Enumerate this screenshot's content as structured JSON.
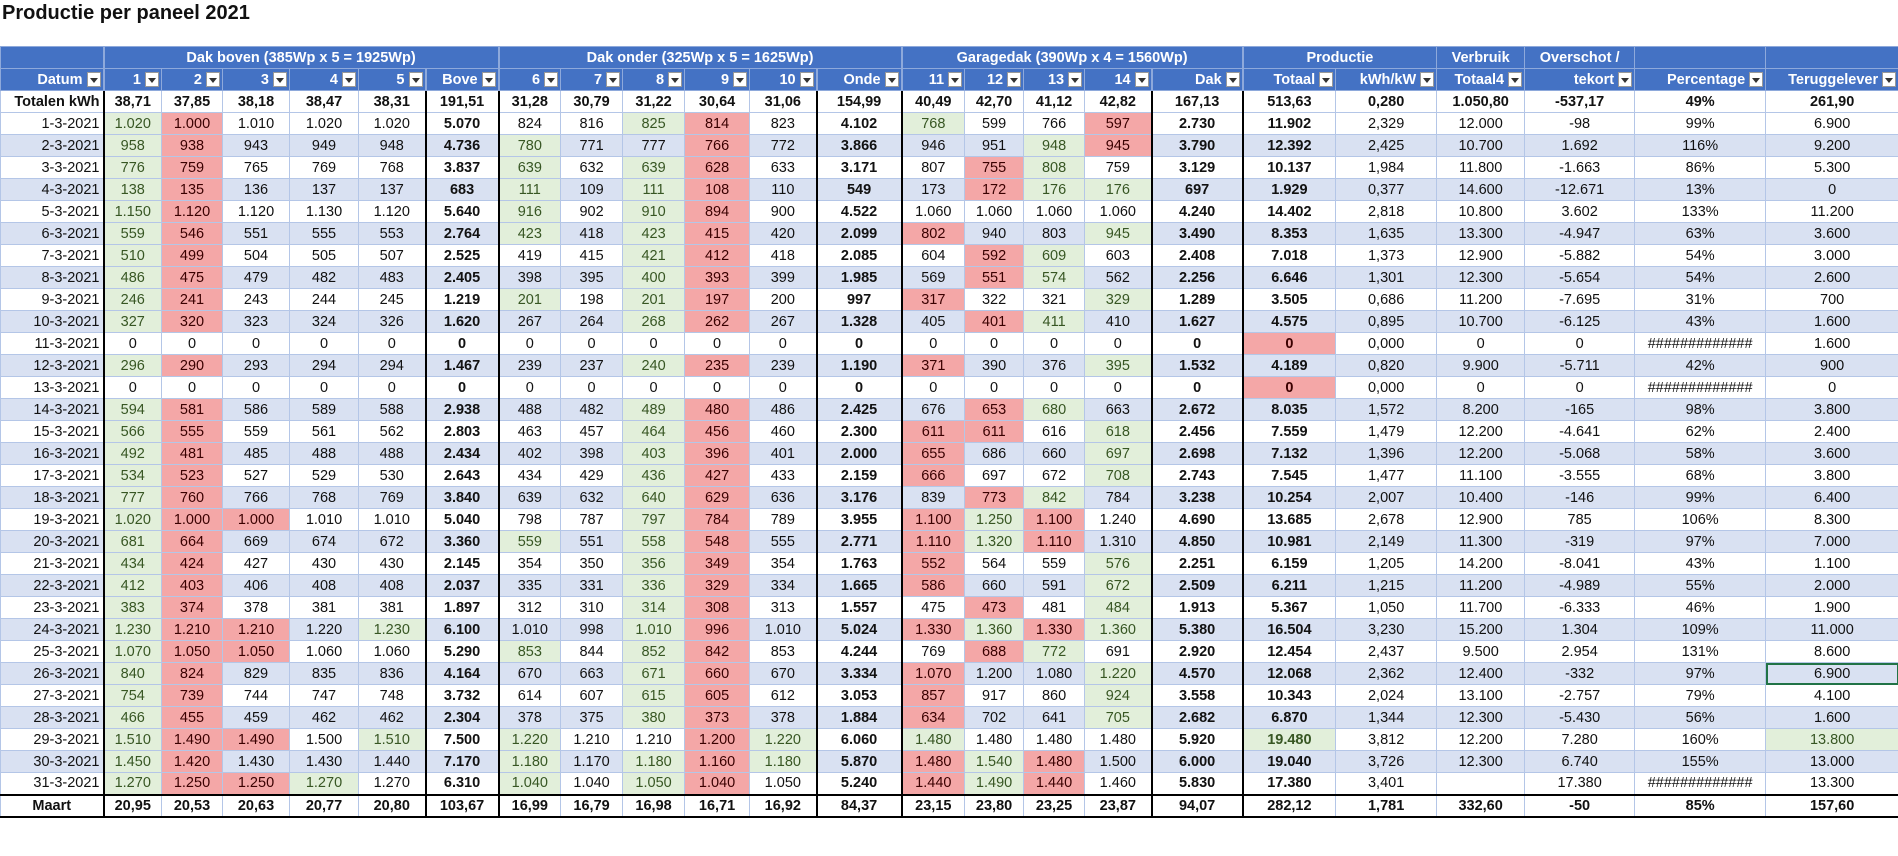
{
  "title": "Productie per paneel 2021",
  "table": {
    "group_headers": [
      "Dak boven (385Wp x 5 = 1925Wp)",
      "Dak onder (325Wp x 5 = 1625Wp)",
      "Garagedak (390Wp x 4 = 1560Wp)",
      "Productie",
      "Verbruik",
      "Overschot /"
    ],
    "headers": [
      "Datum",
      "1",
      "2",
      "3",
      "4",
      "5",
      "Bove",
      "6",
      "7",
      "8",
      "9",
      "10",
      "Onde",
      "11",
      "12",
      "13",
      "14",
      "Dak",
      "Totaal",
      "kWh/kW",
      "Totaal4",
      "tekort",
      "Percentage",
      "Teruggelever"
    ],
    "totals_row": [
      "Totalen kWh",
      "38,71",
      "37,85",
      "38,18",
      "38,47",
      "38,31",
      "191,51",
      "31,28",
      "30,79",
      "31,22",
      "30,64",
      "31,06",
      "154,99",
      "40,49",
      "42,70",
      "41,12",
      "42,82",
      "167,13",
      "513,63",
      "0,280",
      "1.050,80",
      "-537,17",
      "49%",
      "261,90"
    ],
    "rows": [
      [
        "1-3-2021",
        "1.020",
        "1.000",
        "1.010",
        "1.020",
        "1.020",
        "5.070",
        "824",
        "816",
        "825",
        "814",
        "823",
        "4.102",
        "768",
        "599",
        "766",
        "597",
        "2.730",
        "11.902",
        "2,329",
        "12.000",
        "-98",
        "99%",
        "6.900"
      ],
      [
        "2-3-2021",
        "958",
        "938",
        "943",
        "949",
        "948",
        "4.736",
        "780",
        "771",
        "777",
        "766",
        "772",
        "3.866",
        "946",
        "951",
        "948",
        "945",
        "3.790",
        "12.392",
        "2,425",
        "10.700",
        "1.692",
        "116%",
        "9.200"
      ],
      [
        "3-3-2021",
        "776",
        "759",
        "765",
        "769",
        "768",
        "3.837",
        "639",
        "632",
        "639",
        "628",
        "633",
        "3.171",
        "807",
        "755",
        "808",
        "759",
        "3.129",
        "10.137",
        "1,984",
        "11.800",
        "-1.663",
        "86%",
        "5.300"
      ],
      [
        "4-3-2021",
        "138",
        "135",
        "136",
        "137",
        "137",
        "683",
        "111",
        "109",
        "111",
        "108",
        "110",
        "549",
        "173",
        "172",
        "176",
        "176",
        "697",
        "1.929",
        "0,377",
        "14.600",
        "-12.671",
        "13%",
        "0"
      ],
      [
        "5-3-2021",
        "1.150",
        "1.120",
        "1.120",
        "1.130",
        "1.120",
        "5.640",
        "916",
        "902",
        "910",
        "894",
        "900",
        "4.522",
        "1.060",
        "1.060",
        "1.060",
        "1.060",
        "4.240",
        "14.402",
        "2,818",
        "10.800",
        "3.602",
        "133%",
        "11.200"
      ],
      [
        "6-3-2021",
        "559",
        "546",
        "551",
        "555",
        "553",
        "2.764",
        "423",
        "418",
        "423",
        "415",
        "420",
        "2.099",
        "802",
        "940",
        "803",
        "945",
        "3.490",
        "8.353",
        "1,635",
        "13.300",
        "-4.947",
        "63%",
        "3.600"
      ],
      [
        "7-3-2021",
        "510",
        "499",
        "504",
        "505",
        "507",
        "2.525",
        "419",
        "415",
        "421",
        "412",
        "418",
        "2.085",
        "604",
        "592",
        "609",
        "603",
        "2.408",
        "7.018",
        "1,373",
        "12.900",
        "-5.882",
        "54%",
        "3.000"
      ],
      [
        "8-3-2021",
        "486",
        "475",
        "479",
        "482",
        "483",
        "2.405",
        "398",
        "395",
        "400",
        "393",
        "399",
        "1.985",
        "569",
        "551",
        "574",
        "562",
        "2.256",
        "6.646",
        "1,301",
        "12.300",
        "-5.654",
        "54%",
        "2.600"
      ],
      [
        "9-3-2021",
        "246",
        "241",
        "243",
        "244",
        "245",
        "1.219",
        "201",
        "198",
        "201",
        "197",
        "200",
        "997",
        "317",
        "322",
        "321",
        "329",
        "1.289",
        "3.505",
        "0,686",
        "11.200",
        "-7.695",
        "31%",
        "700"
      ],
      [
        "10-3-2021",
        "327",
        "320",
        "323",
        "324",
        "326",
        "1.620",
        "267",
        "264",
        "268",
        "262",
        "267",
        "1.328",
        "405",
        "401",
        "411",
        "410",
        "1.627",
        "4.575",
        "0,895",
        "10.700",
        "-6.125",
        "43%",
        "1.600"
      ],
      [
        "11-3-2021",
        "0",
        "0",
        "0",
        "0",
        "0",
        "0",
        "0",
        "0",
        "0",
        "0",
        "0",
        "0",
        "0",
        "0",
        "0",
        "0",
        "0",
        "0",
        "0,000",
        "0",
        "0",
        "#############",
        "1.600"
      ],
      [
        "12-3-2021",
        "296",
        "290",
        "293",
        "294",
        "294",
        "1.467",
        "239",
        "237",
        "240",
        "235",
        "239",
        "1.190",
        "371",
        "390",
        "376",
        "395",
        "1.532",
        "4.189",
        "0,820",
        "9.900",
        "-5.711",
        "42%",
        "900"
      ],
      [
        "13-3-2021",
        "0",
        "0",
        "0",
        "0",
        "0",
        "0",
        "0",
        "0",
        "0",
        "0",
        "0",
        "0",
        "0",
        "0",
        "0",
        "0",
        "0",
        "0",
        "0,000",
        "0",
        "0",
        "#############",
        "0"
      ],
      [
        "14-3-2021",
        "594",
        "581",
        "586",
        "589",
        "588",
        "2.938",
        "488",
        "482",
        "489",
        "480",
        "486",
        "2.425",
        "676",
        "653",
        "680",
        "663",
        "2.672",
        "8.035",
        "1,572",
        "8.200",
        "-165",
        "98%",
        "3.800"
      ],
      [
        "15-3-2021",
        "566",
        "555",
        "559",
        "561",
        "562",
        "2.803",
        "463",
        "457",
        "464",
        "456",
        "460",
        "2.300",
        "611",
        "611",
        "616",
        "618",
        "2.456",
        "7.559",
        "1,479",
        "12.200",
        "-4.641",
        "62%",
        "2.400"
      ],
      [
        "16-3-2021",
        "492",
        "481",
        "485",
        "488",
        "488",
        "2.434",
        "402",
        "398",
        "403",
        "396",
        "401",
        "2.000",
        "655",
        "686",
        "660",
        "697",
        "2.698",
        "7.132",
        "1,396",
        "12.200",
        "-5.068",
        "58%",
        "3.600"
      ],
      [
        "17-3-2021",
        "534",
        "523",
        "527",
        "529",
        "530",
        "2.643",
        "434",
        "429",
        "436",
        "427",
        "433",
        "2.159",
        "666",
        "697",
        "672",
        "708",
        "2.743",
        "7.545",
        "1,477",
        "11.100",
        "-3.555",
        "68%",
        "3.800"
      ],
      [
        "18-3-2021",
        "777",
        "760",
        "766",
        "768",
        "769",
        "3.840",
        "639",
        "632",
        "640",
        "629",
        "636",
        "3.176",
        "839",
        "773",
        "842",
        "784",
        "3.238",
        "10.254",
        "2,007",
        "10.400",
        "-146",
        "99%",
        "6.400"
      ],
      [
        "19-3-2021",
        "1.020",
        "1.000",
        "1.000",
        "1.010",
        "1.010",
        "5.040",
        "798",
        "787",
        "797",
        "784",
        "789",
        "3.955",
        "1.100",
        "1.250",
        "1.100",
        "1.240",
        "4.690",
        "13.685",
        "2,678",
        "12.900",
        "785",
        "106%",
        "8.300"
      ],
      [
        "20-3-2021",
        "681",
        "664",
        "669",
        "674",
        "672",
        "3.360",
        "559",
        "551",
        "558",
        "548",
        "555",
        "2.771",
        "1.110",
        "1.320",
        "1.110",
        "1.310",
        "4.850",
        "10.981",
        "2,149",
        "11.300",
        "-319",
        "97%",
        "7.000"
      ],
      [
        "21-3-2021",
        "434",
        "424",
        "427",
        "430",
        "430",
        "2.145",
        "354",
        "350",
        "356",
        "349",
        "354",
        "1.763",
        "552",
        "564",
        "559",
        "576",
        "2.251",
        "6.159",
        "1,205",
        "14.200",
        "-8.041",
        "43%",
        "1.100"
      ],
      [
        "22-3-2021",
        "412",
        "403",
        "406",
        "408",
        "408",
        "2.037",
        "335",
        "331",
        "336",
        "329",
        "334",
        "1.665",
        "586",
        "660",
        "591",
        "672",
        "2.509",
        "6.211",
        "1,215",
        "11.200",
        "-4.989",
        "55%",
        "2.000"
      ],
      [
        "23-3-2021",
        "383",
        "374",
        "378",
        "381",
        "381",
        "1.897",
        "312",
        "310",
        "314",
        "308",
        "313",
        "1.557",
        "475",
        "473",
        "481",
        "484",
        "1.913",
        "5.367",
        "1,050",
        "11.700",
        "-6.333",
        "46%",
        "1.900"
      ],
      [
        "24-3-2021",
        "1.230",
        "1.210",
        "1.210",
        "1.220",
        "1.230",
        "6.100",
        "1.010",
        "998",
        "1.010",
        "996",
        "1.010",
        "5.024",
        "1.330",
        "1.360",
        "1.330",
        "1.360",
        "5.380",
        "16.504",
        "3,230",
        "15.200",
        "1.304",
        "109%",
        "11.000"
      ],
      [
        "25-3-2021",
        "1.070",
        "1.050",
        "1.050",
        "1.060",
        "1.060",
        "5.290",
        "853",
        "844",
        "852",
        "842",
        "853",
        "4.244",
        "769",
        "688",
        "772",
        "691",
        "2.920",
        "12.454",
        "2,437",
        "9.500",
        "2.954",
        "131%",
        "8.600"
      ],
      [
        "26-3-2021",
        "840",
        "824",
        "829",
        "835",
        "836",
        "4.164",
        "670",
        "663",
        "671",
        "660",
        "670",
        "3.334",
        "1.070",
        "1.200",
        "1.080",
        "1.220",
        "4.570",
        "12.068",
        "2,362",
        "12.400",
        "-332",
        "97%",
        "6.900"
      ],
      [
        "27-3-2021",
        "754",
        "739",
        "744",
        "747",
        "748",
        "3.732",
        "614",
        "607",
        "615",
        "605",
        "612",
        "3.053",
        "857",
        "917",
        "860",
        "924",
        "3.558",
        "10.343",
        "2,024",
        "13.100",
        "-2.757",
        "79%",
        "4.100"
      ],
      [
        "28-3-2021",
        "466",
        "455",
        "459",
        "462",
        "462",
        "2.304",
        "378",
        "375",
        "380",
        "373",
        "378",
        "1.884",
        "634",
        "702",
        "641",
        "705",
        "2.682",
        "6.870",
        "1,344",
        "12.300",
        "-5.430",
        "56%",
        "1.600"
      ],
      [
        "29-3-2021",
        "1.510",
        "1.490",
        "1.490",
        "1.500",
        "1.510",
        "7.500",
        "1.220",
        "1.210",
        "1.210",
        "1.200",
        "1.220",
        "6.060",
        "1.480",
        "1.480",
        "1.480",
        "1.480",
        "5.920",
        "19.480",
        "3,812",
        "12.200",
        "7.280",
        "160%",
        "13.800"
      ],
      [
        "30-3-2021",
        "1.450",
        "1.420",
        "1.430",
        "1.430",
        "1.440",
        "7.170",
        "1.180",
        "1.170",
        "1.180",
        "1.160",
        "1.180",
        "5.870",
        "1.480",
        "1.540",
        "1.480",
        "1.500",
        "6.000",
        "19.040",
        "3,726",
        "12.300",
        "6.740",
        "155%",
        "13.000"
      ],
      [
        "31-3-2021",
        "1.270",
        "1.250",
        "1.250",
        "1.270",
        "1.270",
        "6.310",
        "1.040",
        "1.040",
        "1.050",
        "1.040",
        "1.050",
        "5.240",
        "1.440",
        "1.490",
        "1.440",
        "1.460",
        "5.830",
        "17.380",
        "3,401",
        null,
        "17.380",
        "#############",
        "13.300"
      ]
    ],
    "footer_row": [
      "Maart",
      "20,95",
      "20,53",
      "20,63",
      "20,77",
      "20,80",
      "103,67",
      "16,99",
      "16,79",
      "16,98",
      "16,71",
      "16,92",
      "84,37",
      "23,15",
      "23,80",
      "23,25",
      "23,87",
      "94,07",
      "282,12",
      "1,781",
      "332,60",
      "-50",
      "85%",
      "157,60"
    ]
  }
}
